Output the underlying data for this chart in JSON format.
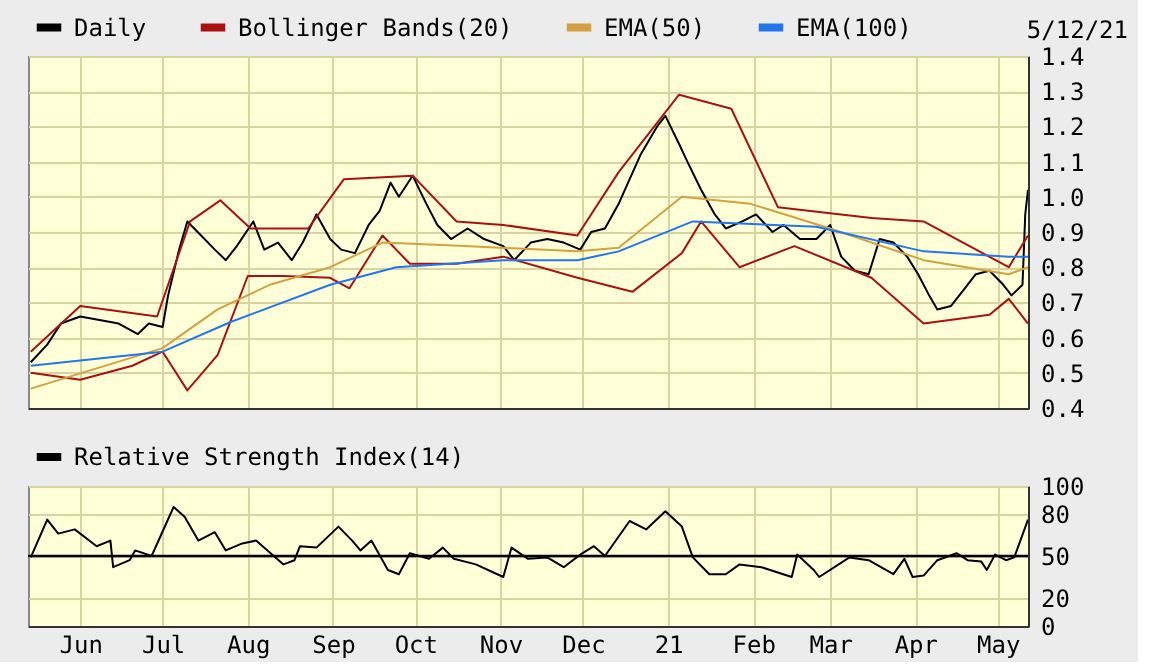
{
  "chart_data": [
    {
      "type": "line",
      "xlim": [
        "2020-05-13",
        "2021-05-12"
      ],
      "xticks": [
        {
          "value": "2020-06-01",
          "label": null
        },
        {
          "value": "2020-07-01",
          "label": null
        },
        {
          "value": "2020-08-01",
          "label": null
        },
        {
          "value": "2020-09-01",
          "label": null
        },
        {
          "value": "2020-10-01",
          "label": null
        },
        {
          "value": "2020-11-01",
          "label": null
        },
        {
          "value": "2020-12-01",
          "label": null
        },
        {
          "value": "2021-01-01",
          "label": null
        },
        {
          "value": "2021-02-01",
          "label": null
        },
        {
          "value": "2021-03-01",
          "label": null
        },
        {
          "value": "2021-04-01",
          "label": null
        },
        {
          "value": "2021-05-01",
          "label": null
        }
      ],
      "ylim": [
        0.4,
        1.4
      ],
      "yticks": [
        0.4,
        0.5,
        0.6,
        0.7,
        0.8,
        0.9,
        {
          "value": 1.0,
          "label": "1.0"
        },
        1.1,
        1.2,
        1.3,
        1.4
      ],
      "grid": true,
      "legend": "top",
      "tick_labels": "y",
      "annotations": [
        "5/12/21"
      ],
      "series": [
        {
          "name": "Daily",
          "color": "#000000",
          "x": [
            "2020-05-14",
            "2020-05-20",
            "2020-05-25",
            "2020-06-01",
            "2020-06-08",
            "2020-06-15",
            "2020-06-22",
            "2020-06-26",
            "2020-07-01",
            "2020-07-03",
            "2020-07-07",
            "2020-07-10",
            "2020-07-15",
            "2020-07-20",
            "2020-07-24",
            "2020-07-28",
            "2020-08-03",
            "2020-08-07",
            "2020-08-12",
            "2020-08-17",
            "2020-08-21",
            "2020-08-26",
            "2020-08-31",
            "2020-09-04",
            "2020-09-09",
            "2020-09-14",
            "2020-09-18",
            "2020-09-22",
            "2020-09-25",
            "2020-09-30",
            "2020-10-05",
            "2020-10-09",
            "2020-10-14",
            "2020-10-20",
            "2020-10-26",
            "2020-11-02",
            "2020-11-06",
            "2020-11-12",
            "2020-11-18",
            "2020-11-24",
            "2020-11-30",
            "2020-12-04",
            "2020-12-09",
            "2020-12-14",
            "2020-12-18",
            "2020-12-22",
            "2020-12-28",
            "2020-12-31",
            "2021-01-05",
            "2021-01-08",
            "2021-01-13",
            "2021-01-18",
            "2021-01-22",
            "2021-01-28",
            "2021-02-02",
            "2021-02-08",
            "2021-02-12",
            "2021-02-18",
            "2021-02-24",
            "2021-03-01",
            "2021-03-05",
            "2021-03-10",
            "2021-03-15",
            "2021-03-19",
            "2021-03-24",
            "2021-03-29",
            "2021-04-02",
            "2021-04-06",
            "2021-04-09",
            "2021-04-14",
            "2021-04-19",
            "2021-04-23",
            "2021-04-28",
            "2021-05-03",
            "2021-05-06",
            "2021-05-10",
            "2021-05-11",
            "2021-05-12"
          ],
          "values": [
            0.53,
            0.58,
            0.64,
            0.66,
            0.65,
            0.64,
            0.61,
            0.64,
            0.63,
            0.72,
            0.85,
            0.93,
            0.89,
            0.85,
            0.82,
            0.86,
            0.93,
            0.85,
            0.87,
            0.82,
            0.87,
            0.95,
            0.88,
            0.85,
            0.84,
            0.92,
            0.96,
            1.04,
            1.0,
            1.06,
            0.98,
            0.92,
            0.88,
            0.91,
            0.88,
            0.86,
            0.82,
            0.87,
            0.88,
            0.87,
            0.85,
            0.9,
            0.91,
            0.98,
            1.05,
            1.12,
            1.2,
            1.23,
            1.15,
            1.1,
            1.02,
            0.95,
            0.91,
            0.93,
            0.95,
            0.9,
            0.92,
            0.88,
            0.88,
            0.92,
            0.83,
            0.79,
            0.78,
            0.88,
            0.87,
            0.83,
            0.78,
            0.72,
            0.68,
            0.69,
            0.74,
            0.78,
            0.79,
            0.75,
            0.72,
            0.75,
            0.95,
            1.02
          ]
        },
        {
          "name": "Bollinger Bands(20)",
          "color": "#aa1111",
          "x": [
            "2020-05-14",
            "2020-06-01",
            "2020-06-29",
            "2020-07-11",
            "2020-07-22",
            "2020-08-02",
            "2020-08-23",
            "2020-09-05",
            "2020-09-30",
            "2020-10-16",
            "2020-11-02",
            "2020-11-29",
            "2020-12-14",
            "2021-01-05",
            "2021-01-24",
            "2021-02-10",
            "2021-03-16",
            "2021-04-04",
            "2021-05-05",
            "2021-05-12"
          ],
          "values": [
            0.56,
            0.69,
            0.66,
            0.93,
            0.99,
            0.91,
            0.91,
            1.05,
            1.06,
            0.93,
            0.92,
            0.89,
            1.07,
            1.29,
            1.25,
            0.97,
            0.94,
            0.93,
            0.8,
            0.89
          ]
        },
        {
          "color": "#aa1111",
          "x": [
            "2020-05-14",
            "2020-06-01",
            "2020-06-20",
            "2020-07-01",
            "2020-07-10",
            "2020-07-21",
            "2020-08-01",
            "2020-08-14",
            "2020-08-31",
            "2020-09-07",
            "2020-09-19",
            "2020-09-29",
            "2020-10-16",
            "2020-11-02",
            "2020-11-29",
            "2020-12-19",
            "2021-01-06",
            "2021-01-13",
            "2021-01-27",
            "2021-02-16",
            "2021-03-16",
            "2021-04-04",
            "2021-04-28",
            "2021-05-05",
            "2021-05-12"
          ],
          "values": [
            0.5,
            0.48,
            0.52,
            0.56,
            0.45,
            0.55,
            0.775,
            0.775,
            0.77,
            0.74,
            0.89,
            0.81,
            0.81,
            0.83,
            0.77,
            0.73,
            0.84,
            0.93,
            0.8,
            0.86,
            0.77,
            0.64,
            0.665,
            0.71,
            0.64
          ]
        },
        {
          "name": "EMA(50)",
          "color": "#d4a040",
          "x": [
            "2020-05-14",
            "2020-07-01",
            "2020-07-21",
            "2020-08-09",
            "2020-08-31",
            "2020-09-19",
            "2020-10-19",
            "2020-11-29",
            "2020-12-14",
            "2021-01-06",
            "2021-01-31",
            "2021-03-01",
            "2021-04-04",
            "2021-05-05",
            "2021-05-12"
          ],
          "values": [
            0.455,
            0.57,
            0.68,
            0.75,
            0.8,
            0.87,
            0.86,
            0.845,
            0.855,
            1.0,
            0.98,
            0.91,
            0.82,
            0.78,
            0.8
          ]
        },
        {
          "name": "EMA(100)",
          "color": "#2277ee",
          "x": [
            "2020-05-14",
            "2020-07-01",
            "2020-07-26",
            "2020-08-31",
            "2020-09-24",
            "2020-11-02",
            "2020-11-29",
            "2020-12-14",
            "2021-01-10",
            "2021-02-24",
            "2021-04-04",
            "2021-05-05",
            "2021-05-12"
          ],
          "values": [
            0.52,
            0.56,
            0.645,
            0.75,
            0.8,
            0.82,
            0.82,
            0.845,
            0.93,
            0.915,
            0.845,
            0.83,
            0.83
          ]
        }
      ]
    },
    {
      "type": "line",
      "xlim": [
        "2020-05-13",
        "2021-05-12"
      ],
      "xticks": [
        {
          "value": "2020-06-01",
          "label": "Jun"
        },
        {
          "value": "2020-07-01",
          "label": "Jul"
        },
        {
          "value": "2020-08-01",
          "label": "Aug"
        },
        {
          "value": "2020-09-01",
          "label": "Sep"
        },
        {
          "value": "2020-10-01",
          "label": "Oct"
        },
        {
          "value": "2020-11-01",
          "label": "Nov"
        },
        {
          "value": "2020-12-01",
          "label": "Dec"
        },
        {
          "value": "2021-01-01",
          "label": "21"
        },
        {
          "value": "2021-02-01",
          "label": "Feb"
        },
        {
          "value": "2021-03-01",
          "label": "Mar"
        },
        {
          "value": "2021-04-01",
          "label": "Apr"
        },
        {
          "value": "2021-05-01",
          "label": "May"
        }
      ],
      "ylim": [
        0,
        100
      ],
      "yticks": [
        0,
        20,
        50,
        80,
        100
      ],
      "grid": true,
      "legend": "top",
      "ref_lines": [
        {
          "axis": "y",
          "value": 50,
          "color": "#000000"
        }
      ],
      "series": [
        {
          "name": "Relative Strength Index(14)",
          "color": "#000000",
          "x": [
            "2020-05-14",
            "2020-05-20",
            "2020-05-24",
            "2020-05-30",
            "2020-06-07",
            "2020-06-12",
            "2020-06-13",
            "2020-06-19",
            "2020-06-21",
            "2020-06-27",
            "2020-07-05",
            "2020-07-09",
            "2020-07-14",
            "2020-07-20",
            "2020-07-24",
            "2020-07-30",
            "2020-08-04",
            "2020-08-14",
            "2020-08-18",
            "2020-08-20",
            "2020-08-26",
            "2020-09-03",
            "2020-09-08",
            "2020-09-11",
            "2020-09-15",
            "2020-09-21",
            "2020-09-25",
            "2020-09-29",
            "2020-10-06",
            "2020-10-11",
            "2020-10-15",
            "2020-10-23",
            "2020-11-02",
            "2020-11-05",
            "2020-11-11",
            "2020-11-18",
            "2020-11-24",
            "2020-11-30",
            "2020-12-05",
            "2020-12-09",
            "2020-12-18",
            "2020-12-24",
            "2020-12-31",
            "2021-01-06",
            "2021-01-10",
            "2021-01-16",
            "2021-01-22",
            "2021-01-27",
            "2021-02-04",
            "2021-02-15",
            "2021-02-17",
            "2021-02-23",
            "2021-02-25",
            "2021-03-08",
            "2021-03-15",
            "2021-03-24",
            "2021-03-28",
            "2021-03-31",
            "2021-04-04",
            "2021-04-09",
            "2021-04-16",
            "2021-04-20",
            "2021-04-25",
            "2021-04-27",
            "2021-04-30",
            "2021-05-04",
            "2021-05-07",
            "2021-05-12"
          ],
          "values": [
            49,
            76,
            66,
            69,
            57,
            61,
            42,
            47,
            54,
            50,
            85,
            78,
            61,
            67,
            54,
            59,
            61,
            44,
            47,
            57,
            56,
            71,
            61,
            54,
            61,
            40,
            37,
            52,
            48,
            56,
            48,
            44,
            35,
            56,
            48,
            49,
            42,
            51,
            57,
            50,
            75,
            69,
            82,
            71,
            49,
            37,
            37,
            44,
            42,
            35,
            51,
            40,
            35,
            49,
            47,
            37,
            48,
            35,
            36,
            47,
            52,
            47,
            46,
            40,
            51,
            47,
            49,
            76
          ]
        }
      ]
    }
  ]
}
